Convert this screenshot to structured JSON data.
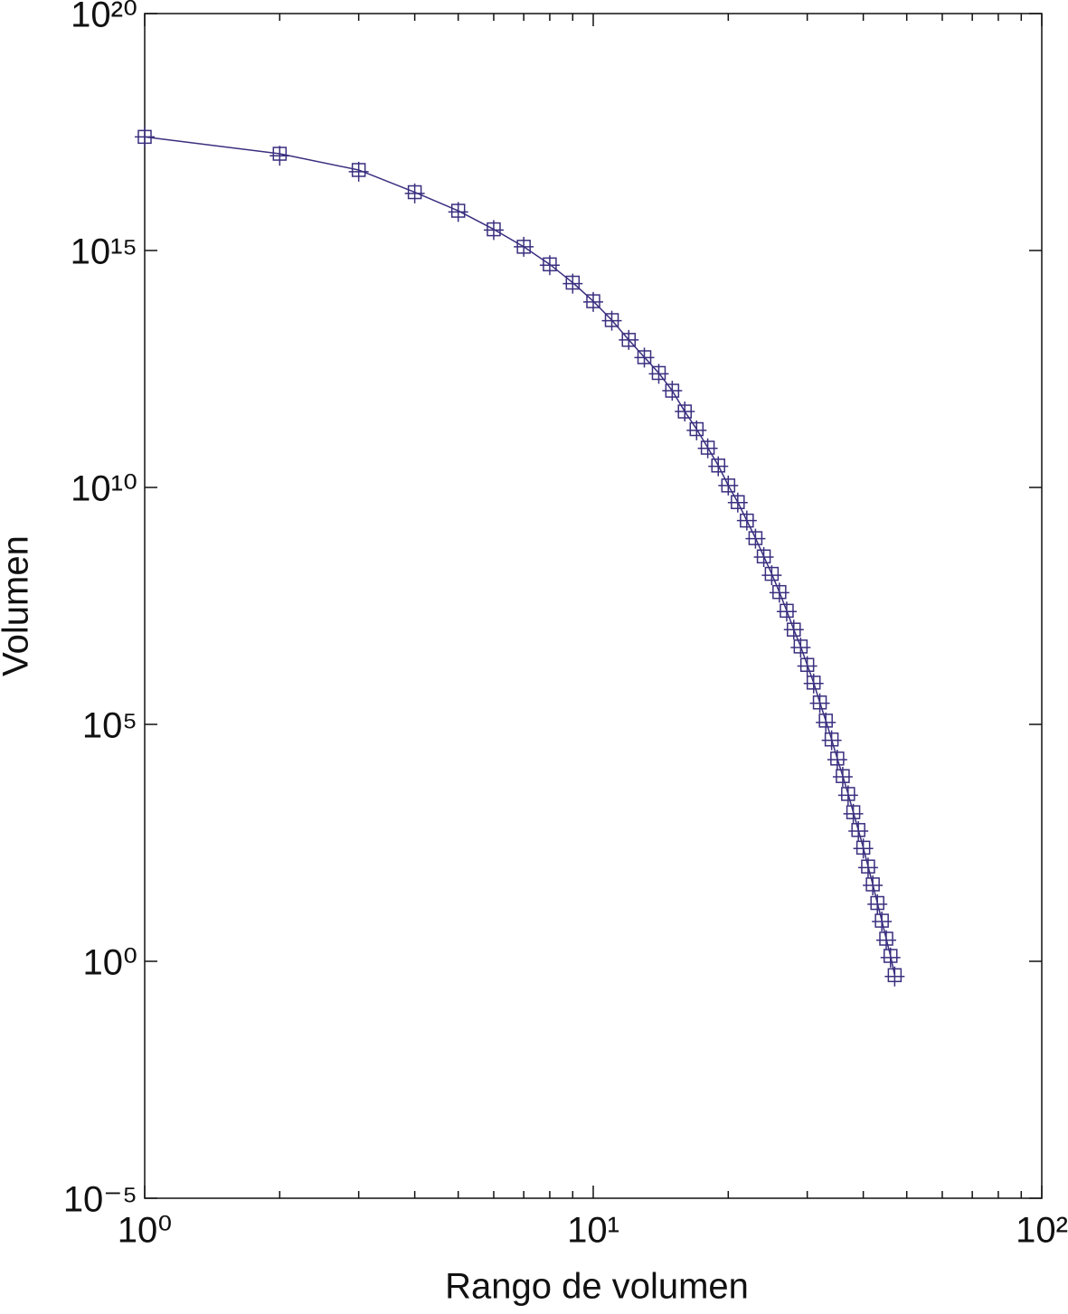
{
  "chart_data": {
    "type": "line",
    "x_label": "Rango de volumen",
    "y_label": "Volumen",
    "x": [
      1,
      2,
      3,
      4,
      5,
      6,
      7,
      8,
      9,
      10,
      11,
      12,
      13,
      14,
      15,
      16,
      17,
      18,
      19,
      20,
      21,
      22,
      23,
      24,
      25,
      26,
      27,
      28,
      29,
      30,
      31,
      32,
      33,
      34,
      35,
      36,
      37,
      38,
      39,
      40,
      41,
      42,
      43,
      44,
      45,
      46,
      47
    ],
    "series": [
      {
        "color": "#3a2f7f",
        "marker": "square",
        "line": true,
        "values": [
          2.5e+17,
          1.1e+17,
          5e+16,
          1.7e+16,
          6900000000000000.0,
          2800000000000000.0,
          1200000000000000.0,
          510000000000000.0,
          210000000000000.0,
          85000000000000.0,
          34000000000000.0,
          13000000000000.0,
          5600000000000.0,
          2600000000000.0,
          1100000000000.0,
          400000000000.0,
          170000000000.0,
          69000000000.0,
          29000000000.0,
          11000000000.0,
          4900000000.0,
          2000000000.0,
          850000000.0,
          350000000.0,
          150000000.0,
          62000000.0,
          25000000.0,
          10000000.0,
          4400000.0,
          1800000.0,
          760000.0,
          290000.0,
          120000.0,
          48000.0,
          19000.0,
          8100.0,
          3400.0,
          1400.0,
          590,
          250,
          100,
          42,
          17,
          7.2,
          3.0,
          1.3,
          0.51
        ]
      },
      {
        "color": "#3a2f7f",
        "marker": "plus",
        "line": false,
        "values": [
          2.5e+17,
          1e+17,
          4.6e+16,
          1.6e+16,
          6500000000000000.0,
          2700000000000000.0,
          1200000000000000.0,
          490000000000000.0,
          200000000000000.0,
          82000000000000.0,
          33000000000000.0,
          13000000000000.0,
          5500000000000.0,
          2500000000000.0,
          1100000000000.0,
          400000000000.0,
          160000000000.0,
          67000000000.0,
          28000000000.0,
          11000000000.0,
          4800000000.0,
          2000000000.0,
          830000000.0,
          340000000.0,
          140000000.0,
          60000000.0,
          24000000.0,
          10000000.0,
          4200000.0,
          1700000.0,
          730000.0,
          280000.0,
          110000.0,
          46000.0,
          18000.0,
          7800.0,
          3200.0,
          1300.0,
          560,
          240,
          95,
          40,
          16,
          6.9,
          2.8,
          1.2,
          0.48
        ]
      }
    ],
    "xlog": true,
    "ylog": true,
    "xlim": [
      1,
      100
    ],
    "ylim": [
      1e-05,
      1e+20
    ],
    "xticks": [
      {
        "value": 1,
        "label": "10⁰"
      },
      {
        "value": 10,
        "label": "10¹"
      },
      {
        "value": 100,
        "label": "10²"
      }
    ],
    "xminorticks": [
      2,
      3,
      4,
      5,
      6,
      7,
      8,
      9,
      20,
      30,
      40,
      50,
      60,
      70,
      80,
      90
    ],
    "yticks": [
      {
        "value": 1e-05,
        "label": "10⁻⁵"
      },
      {
        "value": 1,
        "label": "10⁰"
      },
      {
        "value": 100000,
        "label": "10⁵"
      },
      {
        "value": 10000000000.0,
        "label": "10¹⁰"
      },
      {
        "value": 1000000000000000.0,
        "label": "10¹⁵"
      },
      {
        "value": 1e+20,
        "label": "10²⁰"
      }
    ],
    "grid": false
  }
}
